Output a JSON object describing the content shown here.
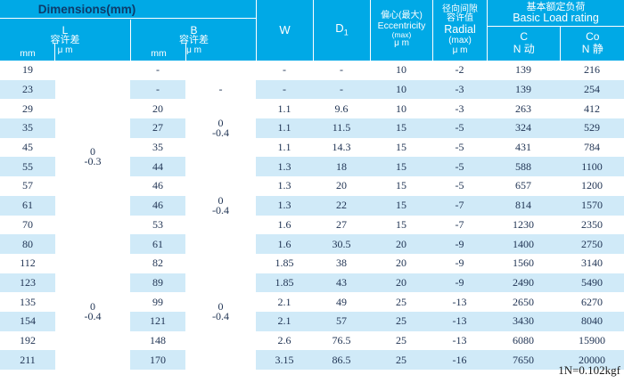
{
  "header": {
    "dimensions_title": "Dimensions(mm)",
    "l_group": {
      "letter": "L",
      "tolerance_label": "容许差",
      "unit_mm": "mm",
      "unit_um": "μ m"
    },
    "b_group": {
      "letter": "B",
      "tolerance_label": "容许差",
      "unit_mm": "mm",
      "unit_um": "μ m"
    },
    "w_label": "W",
    "d1_label": "D",
    "d1_sub": "1",
    "eccentricity": {
      "cn": "偏心(最大)",
      "en": "Eccentricity",
      "max": "(max)",
      "unit": "μ m"
    },
    "radial": {
      "cn1": "径向间隙",
      "cn2": "容许值",
      "en": "Radial",
      "max": "(max)",
      "unit": "μ m"
    },
    "basic_load": {
      "cn": "基本额定负荷",
      "en": "Basic Load rating",
      "c_label": "C",
      "c_sub": "N 动",
      "co_label": "Co",
      "co_sub": "N 静"
    }
  },
  "table": {
    "rows": [
      {
        "l": "19",
        "b": "-",
        "w": "-",
        "d1": "-",
        "ecc": "10",
        "radial": "-2",
        "c": "139",
        "co": "216"
      },
      {
        "l": "23",
        "b": "-",
        "w": "-",
        "d1": "-",
        "ecc": "10",
        "radial": "-3",
        "c": "139",
        "co": "254"
      },
      {
        "l": "29",
        "b": "20",
        "w": "1.1",
        "d1": "9.6",
        "ecc": "10",
        "radial": "-3",
        "c": "263",
        "co": "412"
      },
      {
        "l": "35",
        "b": "27",
        "w": "1.1",
        "d1": "11.5",
        "ecc": "15",
        "radial": "-5",
        "c": "324",
        "co": "529"
      },
      {
        "l": "45",
        "b": "35",
        "w": "1.1",
        "d1": "14.3",
        "ecc": "15",
        "radial": "-5",
        "c": "431",
        "co": "784"
      },
      {
        "l": "55",
        "b": "44",
        "w": "1.3",
        "d1": "18",
        "ecc": "15",
        "radial": "-5",
        "c": "588",
        "co": "1100"
      },
      {
        "l": "57",
        "b": "46",
        "w": "1.3",
        "d1": "20",
        "ecc": "15",
        "radial": "-5",
        "c": "657",
        "co": "1200"
      },
      {
        "l": "61",
        "b": "46",
        "w": "1.3",
        "d1": "22",
        "ecc": "15",
        "radial": "-7",
        "c": "814",
        "co": "1570"
      },
      {
        "l": "70",
        "b": "53",
        "w": "1.6",
        "d1": "27",
        "ecc": "15",
        "radial": "-7",
        "c": "1230",
        "co": "2350"
      },
      {
        "l": "80",
        "b": "61",
        "w": "1.6",
        "d1": "30.5",
        "ecc": "20",
        "radial": "-9",
        "c": "1400",
        "co": "2750"
      },
      {
        "l": "112",
        "b": "82",
        "w": "1.85",
        "d1": "38",
        "ecc": "20",
        "radial": "-9",
        "c": "1560",
        "co": "3140"
      },
      {
        "l": "123",
        "b": "89",
        "w": "1.85",
        "d1": "43",
        "ecc": "20",
        "radial": "-9",
        "c": "2490",
        "co": "5490"
      },
      {
        "l": "135",
        "b": "99",
        "w": "2.1",
        "d1": "49",
        "ecc": "25",
        "radial": "-13",
        "c": "2650",
        "co": "6270"
      },
      {
        "l": "154",
        "b": "121",
        "w": "2.1",
        "d1": "57",
        "ecc": "25",
        "radial": "-13",
        "c": "3430",
        "co": "8040"
      },
      {
        "l": "192",
        "b": "148",
        "w": "2.6",
        "d1": "76.5",
        "ecc": "25",
        "radial": "-13",
        "c": "6080",
        "co": "15900"
      },
      {
        "l": "211",
        "b": "170",
        "w": "3.15",
        "d1": "86.5",
        "ecc": "25",
        "radial": "-16",
        "c": "7650",
        "co": "20000"
      }
    ],
    "l_tolerance_groups": [
      {
        "start": 0,
        "end": 9,
        "lines": [
          "0",
          "-0.3"
        ]
      },
      {
        "start": 10,
        "end": 15,
        "lines": [
          "0",
          "-0.4"
        ]
      }
    ],
    "b_tolerance_groups": [
      {
        "start": 0,
        "end": 0,
        "lines": [
          ""
        ]
      },
      {
        "start": 1,
        "end": 1,
        "lines": [
          "-"
        ]
      },
      {
        "start": 2,
        "end": 4,
        "lines": [
          "0",
          "-0.4"
        ]
      },
      {
        "start": 5,
        "end": 9,
        "lines": [
          "0",
          "-0.4"
        ]
      },
      {
        "start": 10,
        "end": 15,
        "lines": [
          "0",
          "-0.4"
        ]
      }
    ]
  },
  "footnote": "1N=0.102kgf",
  "colors": {
    "header_bg": "#00a9e6",
    "stripe": "#d0eaf8",
    "header_text": "#ffffff",
    "title_text": "#0d3c6b",
    "data_text": "#1e3252"
  }
}
